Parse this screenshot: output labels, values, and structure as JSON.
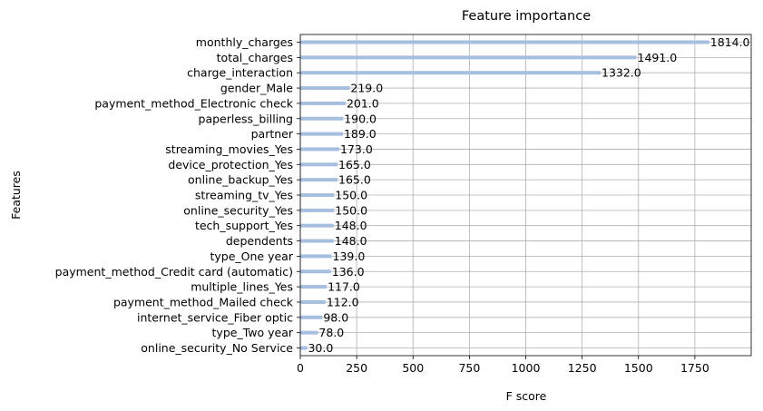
{
  "chart_data": {
    "type": "bar",
    "orientation": "horizontal",
    "title": "Feature importance",
    "xlabel": "F score",
    "ylabel": "Features",
    "xlim": [
      0,
      2000
    ],
    "xticks": [
      0,
      250,
      500,
      750,
      1000,
      1250,
      1500,
      1750
    ],
    "xtick_labels": [
      "0",
      "250",
      "500",
      "750",
      "1000",
      "1250",
      "1500",
      "1750"
    ],
    "grid": true,
    "bar_color": "#a6bedf",
    "categories": [
      "monthly_charges",
      "total_charges",
      "charge_interaction",
      "gender_Male",
      "payment_method_Electronic check",
      "paperless_billing",
      "partner",
      "streaming_movies_Yes",
      "device_protection_Yes",
      "online_backup_Yes",
      "streaming_tv_Yes",
      "online_security_Yes",
      "tech_support_Yes",
      "dependents",
      "type_One year",
      "payment_method_Credit card (automatic)",
      "multiple_lines_Yes",
      "payment_method_Mailed check",
      "internet_service_Fiber optic",
      "type_Two year",
      "online_security_No Service"
    ],
    "values": [
      1814,
      1491,
      1332,
      219,
      201,
      190,
      189,
      173,
      165,
      165,
      150,
      150,
      148,
      148,
      139,
      136,
      117,
      112,
      98,
      78,
      30
    ],
    "value_labels": [
      "1814.0",
      "1491.0",
      "1332.0",
      "219.0",
      "201.0",
      "190.0",
      "189.0",
      "173.0",
      "165.0",
      "165.0",
      "150.0",
      "150.0",
      "148.0",
      "148.0",
      "139.0",
      "136.0",
      "117.0",
      "112.0",
      "98.0",
      "78.0",
      "30.0"
    ]
  }
}
